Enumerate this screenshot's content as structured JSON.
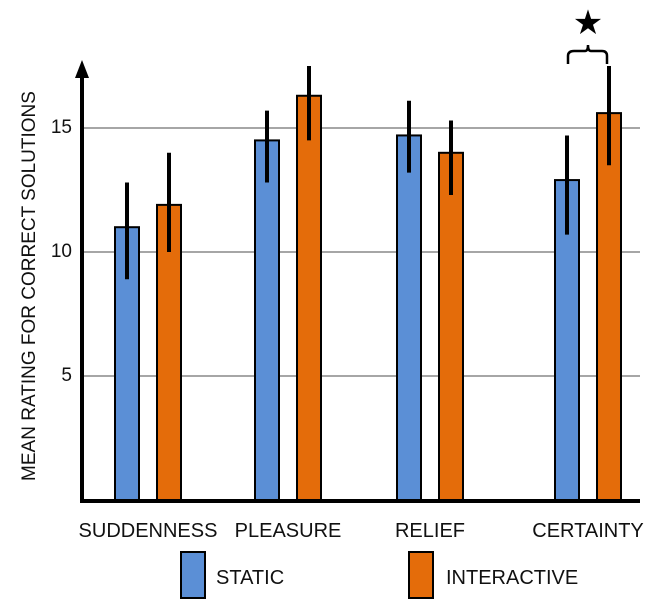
{
  "chart_data": {
    "type": "bar",
    "categories": [
      "SUDDENNESS",
      "PLEASURE",
      "RELIEF",
      "CERTAINTY"
    ],
    "series": [
      {
        "name": "STATIC",
        "color": "#5b8fd6",
        "values": [
          11.0,
          14.5,
          14.7,
          12.9
        ],
        "error_low": [
          8.9,
          12.8,
          13.2,
          10.7
        ],
        "error_high": [
          12.8,
          15.7,
          16.1,
          14.7
        ]
      },
      {
        "name": "INTERACTIVE",
        "color": "#e46c0a",
        "values": [
          11.9,
          16.3,
          14.0,
          15.6
        ],
        "error_low": [
          10.0,
          14.5,
          12.3,
          13.5
        ],
        "error_high": [
          14.0,
          17.5,
          15.3,
          17.5
        ]
      }
    ],
    "ylabel": "MEAN RATING FOR CORRECT SOLUTIONS",
    "yticks": [
      "5",
      "10",
      "15"
    ],
    "ylim": [
      0,
      17.5
    ],
    "grid": true,
    "legend_position": "bottom",
    "significance": {
      "category": "CERTAINTY",
      "marker": "★"
    }
  }
}
